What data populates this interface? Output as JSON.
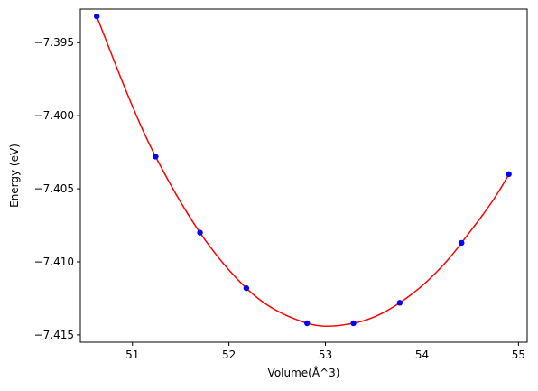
{
  "chart_data": {
    "type": "scatter",
    "title": "",
    "xlabel": "Volume(Å^3)",
    "ylabel": "Energy (eV)",
    "xlim": [
      50.46,
      55.09
    ],
    "ylim": [
      -7.4155,
      -7.3927
    ],
    "x_ticks": [
      51,
      52,
      53,
      54,
      55
    ],
    "x_tick_labels": [
      "51",
      "52",
      "53",
      "54",
      "55"
    ],
    "y_ticks": [
      -7.395,
      -7.4,
      -7.405,
      -7.41,
      -7.415
    ],
    "y_tick_labels": [
      "−7.395",
      "−7.400",
      "−7.405",
      "−7.410",
      "−7.415"
    ],
    "grid": false,
    "legend": "none",
    "series": [
      {
        "kind": "points",
        "color": "#0000ff",
        "x": [
          50.63,
          51.24,
          51.7,
          52.18,
          52.81,
          53.29,
          53.77,
          54.41,
          54.9
        ],
        "y": [
          -7.3932,
          -7.4028,
          -7.408,
          -7.4118,
          -7.4142,
          -7.4142,
          -7.4128,
          -7.4087,
          -7.404
        ]
      },
      {
        "kind": "fit-curve",
        "color": "#ff0000",
        "x_min": 50.63,
        "x_max": 54.9,
        "min_x": 53.05,
        "min_y": -7.4144
      }
    ]
  }
}
